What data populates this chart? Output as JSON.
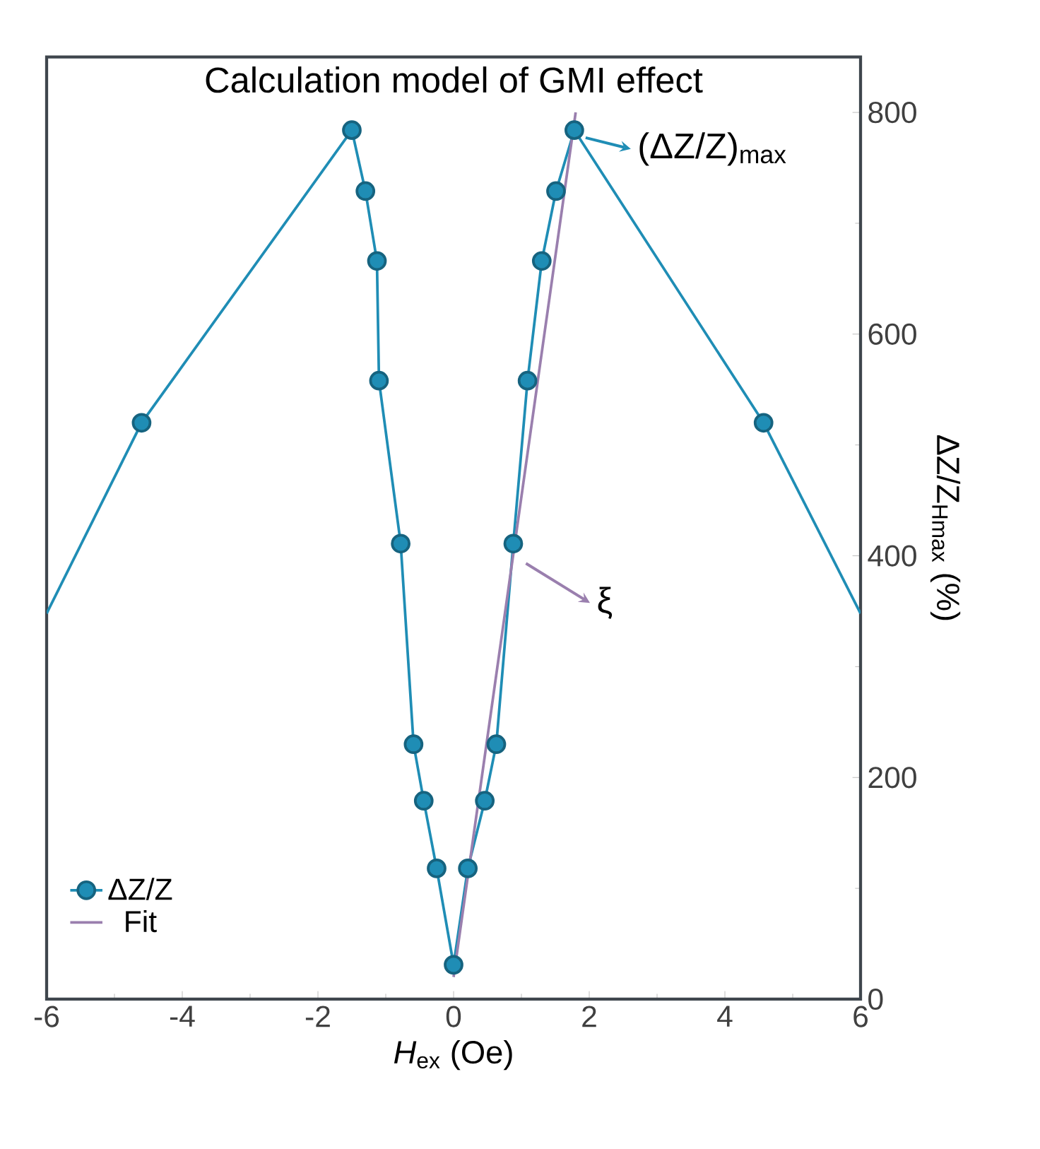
{
  "chart_data": {
    "type": "line",
    "title": "Calculation model of GMI effect",
    "xlabel": "*H*$_{ex}$ (Oe)",
    "ylabel": "ΔZ/Z$_{Hmax}$ (%)",
    "xlim": [
      -6,
      6
    ],
    "xticks": [
      -6,
      -4,
      -2,
      0,
      2,
      4,
      6
    ],
    "ylim": [
      0,
      850
    ],
    "yticks": [
      0,
      200,
      400,
      600,
      800
    ],
    "legend": "bottom left",
    "grid": false,
    "series": [
      {
        "name": "ΔZ/Z",
        "color": "#1f8db5",
        "marker": "circle",
        "x": [
          -4.6,
          -1.5,
          -1.3,
          -1.13,
          -1.1,
          -0.78,
          -0.59,
          -0.44,
          -0.25,
          0,
          0.21,
          0.46,
          0.63,
          0.88,
          1.09,
          1.3,
          1.51,
          1.78,
          4.57
        ],
        "values": [
          520,
          784,
          729,
          666,
          558,
          411,
          230,
          179,
          118,
          31,
          118,
          179,
          230,
          411,
          558,
          666,
          729,
          784,
          520
        ]
      },
      {
        "color": "#1f8db5",
        "marker": "none",
        "x": [
          -6,
          -4.6
        ],
        "values": [
          348,
          520
        ]
      },
      {
        "color": "#1f8db5",
        "marker": "none",
        "x": [
          4.57,
          6
        ],
        "values": [
          520,
          348
        ]
      },
      {
        "name": "Fit",
        "color": "#9a7fae",
        "marker": "none",
        "x": [
          0,
          1.8
        ],
        "values": [
          20,
          800
        ]
      }
    ],
    "annotations": [
      {
        "text": "(ΔZ/Z)$_{max}$",
        "x": 1.78,
        "y": 784
      },
      {
        "text": "ξ",
        "x": 0.9,
        "y": 400
      }
    ]
  }
}
